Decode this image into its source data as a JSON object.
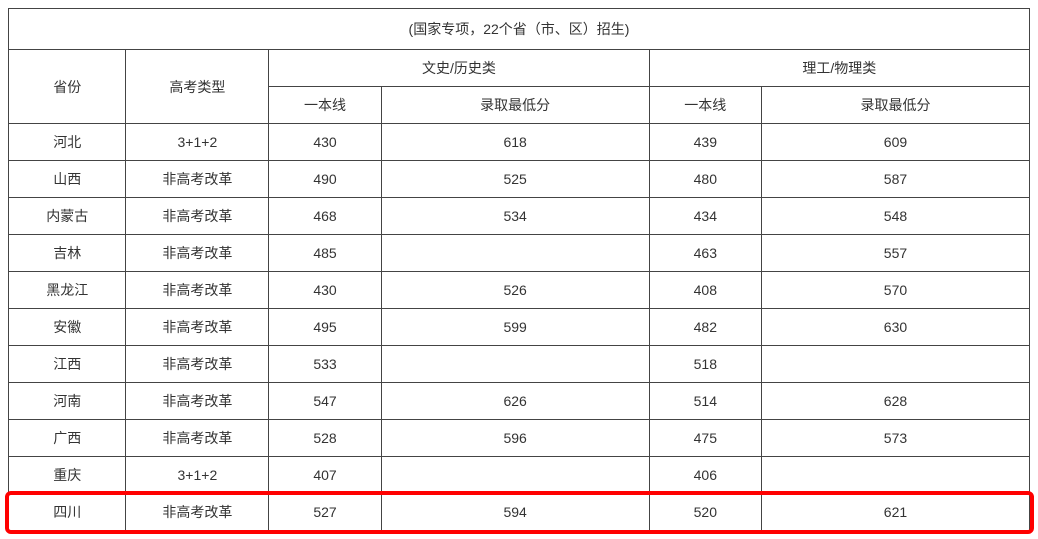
{
  "table": {
    "title": "(国家专项，22个省（市、区）招生)",
    "header": {
      "province": "省份",
      "exam_type": "高考类型",
      "liberal_group": "文史/历史类",
      "science_group": "理工/物理类",
      "tier_one_line": "一本线",
      "min_admission": "录取最低分"
    },
    "rows": [
      {
        "province": "河北",
        "exam_type": "3+1+2",
        "liberal_line": "430",
        "liberal_min": "618",
        "science_line": "439",
        "science_min": "609"
      },
      {
        "province": "山西",
        "exam_type": "非高考改革",
        "liberal_line": "490",
        "liberal_min": "525",
        "science_line": "480",
        "science_min": "587"
      },
      {
        "province": "内蒙古",
        "exam_type": "非高考改革",
        "liberal_line": "468",
        "liberal_min": "534",
        "science_line": "434",
        "science_min": "548"
      },
      {
        "province": "吉林",
        "exam_type": "非高考改革",
        "liberal_line": "485",
        "liberal_min": "",
        "science_line": "463",
        "science_min": "557"
      },
      {
        "province": "黑龙江",
        "exam_type": "非高考改革",
        "liberal_line": "430",
        "liberal_min": "526",
        "science_line": "408",
        "science_min": "570"
      },
      {
        "province": "安徽",
        "exam_type": "非高考改革",
        "liberal_line": "495",
        "liberal_min": "599",
        "science_line": "482",
        "science_min": "630"
      },
      {
        "province": "江西",
        "exam_type": "非高考改革",
        "liberal_line": "533",
        "liberal_min": "",
        "science_line": "518",
        "science_min": ""
      },
      {
        "province": "河南",
        "exam_type": "非高考改革",
        "liberal_line": "547",
        "liberal_min": "626",
        "science_line": "514",
        "science_min": "628"
      },
      {
        "province": "广西",
        "exam_type": "非高考改革",
        "liberal_line": "528",
        "liberal_min": "596",
        "science_line": "475",
        "science_min": "573"
      },
      {
        "province": "重庆",
        "exam_type": "3+1+2",
        "liberal_line": "407",
        "liberal_min": "",
        "science_line": "406",
        "science_min": ""
      },
      {
        "province": "四川",
        "exam_type": "非高考改革",
        "liberal_line": "527",
        "liberal_min": "594",
        "science_line": "520",
        "science_min": "621"
      }
    ],
    "highlight_index": 10,
    "highlight_color": "#ff0000",
    "border_color": "#444444",
    "text_color": "#333333",
    "background_color": "#ffffff",
    "font_size": 14
  }
}
